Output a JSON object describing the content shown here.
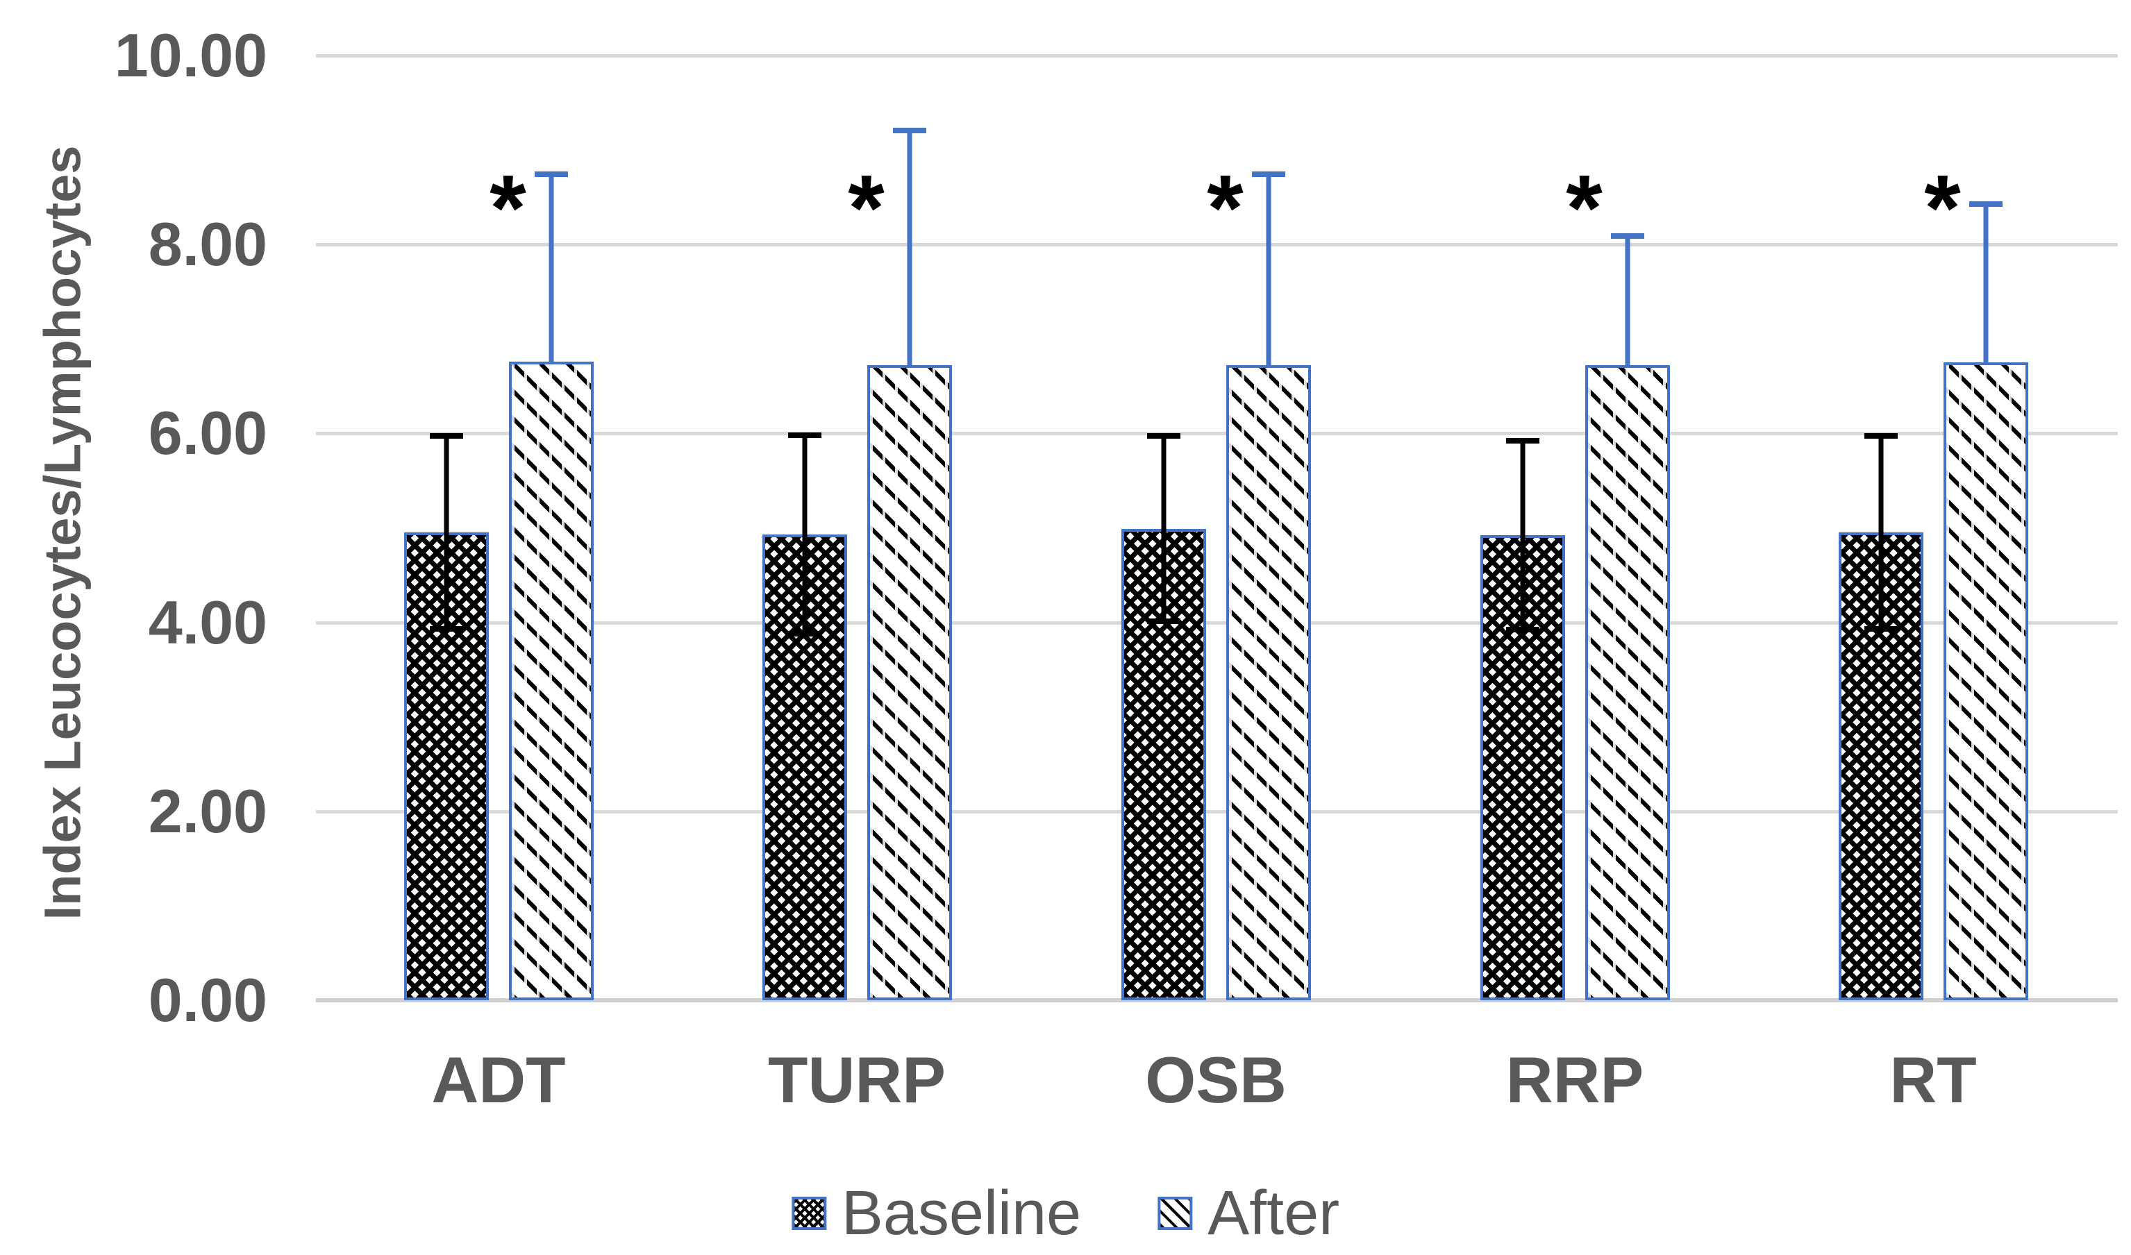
{
  "chart_data": {
    "type": "bar",
    "title": "",
    "ylabel": "Index Leucocytes/Lymphocytes",
    "xlabel": "",
    "categories": [
      "ADT",
      "TURP",
      "OSB",
      "RRP",
      "RT"
    ],
    "series": [
      {
        "name": "Baseline",
        "pattern": "crosshatch",
        "error_color": "#000000",
        "values": [
          4.95,
          4.93,
          4.99,
          4.92,
          4.95
        ],
        "error_upper_top": [
          5.97,
          5.98,
          5.97,
          5.92,
          5.97
        ],
        "error_lower_bottom": [
          3.93,
          3.88,
          4.01,
          3.92,
          3.93
        ]
      },
      {
        "name": "After",
        "pattern": "diagonal",
        "error_color": "#4472C4",
        "values": [
          6.76,
          6.72,
          6.72,
          6.72,
          6.75
        ],
        "error_upper_top": [
          8.74,
          9.21,
          8.74,
          8.09,
          8.43
        ]
      }
    ],
    "significance_marker": "*",
    "significance_marker_on_series": "After",
    "yticks": [
      "0.00",
      "2.00",
      "4.00",
      "6.00",
      "8.00",
      "10.00"
    ],
    "ytick_values": [
      0,
      2,
      4,
      6,
      8,
      10
    ],
    "ylim": [
      0,
      10
    ],
    "grid": true,
    "legend_position": "bottom",
    "legend_labels": [
      "Baseline",
      "After"
    ],
    "colors": {
      "accent_blue": "#4472C4",
      "pattern_black": "#000000",
      "gridline": "#D9D9D9",
      "text": "#595959",
      "background": "#FFFFFF"
    }
  }
}
